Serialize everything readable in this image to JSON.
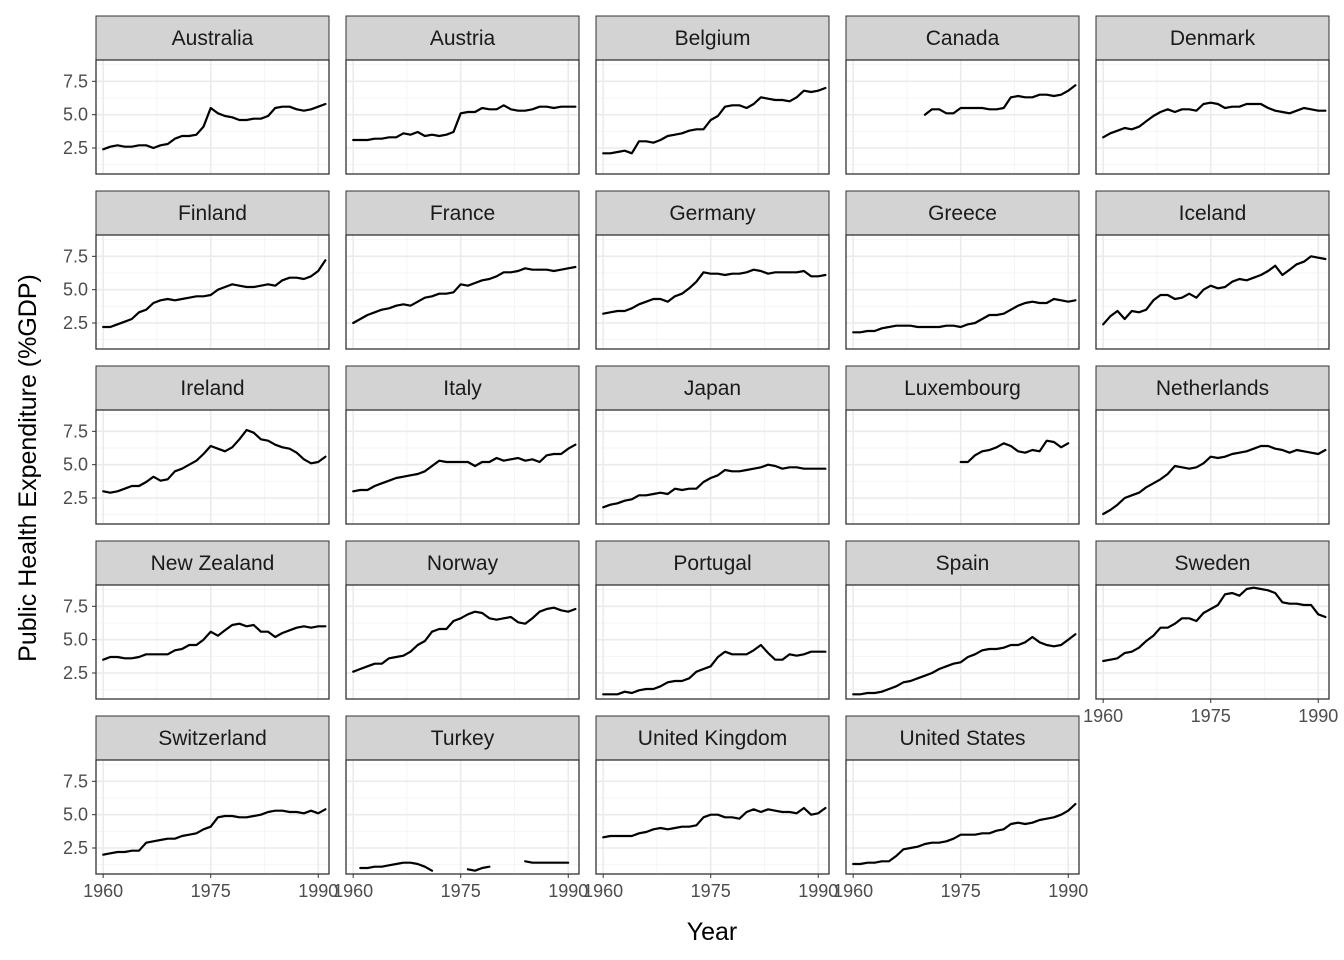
{
  "chart_data": {
    "type": "line",
    "layout": "facet_wrap",
    "xlabel": "Year",
    "ylabel": "Public Health Expenditure (%GDP)",
    "xlim": [
      1959,
      1991.5
    ],
    "ylim": [
      0.55,
      9.1
    ],
    "x_ticks": [
      1960,
      1975,
      1990
    ],
    "x_tick_labels": [
      "1960",
      "1975",
      "1990"
    ],
    "y_ticks": [
      2.5,
      5.0,
      7.5
    ],
    "y_tick_labels": [
      "2.5",
      "5.0",
      "7.5"
    ],
    "x": [
      1960,
      1961,
      1962,
      1963,
      1964,
      1965,
      1966,
      1967,
      1968,
      1969,
      1970,
      1971,
      1972,
      1973,
      1974,
      1975,
      1976,
      1977,
      1978,
      1979,
      1980,
      1981,
      1982,
      1983,
      1984,
      1985,
      1986,
      1987,
      1988,
      1989,
      1990,
      1991
    ],
    "series": [
      {
        "name": "Australia",
        "values": [
          2.4,
          2.6,
          2.7,
          2.6,
          2.6,
          2.7,
          2.7,
          2.5,
          2.7,
          2.8,
          3.2,
          3.4,
          3.4,
          3.5,
          4.1,
          5.5,
          5.1,
          4.9,
          4.8,
          4.6,
          4.6,
          4.7,
          4.7,
          4.9,
          5.5,
          5.6,
          5.6,
          5.4,
          5.3,
          5.4,
          5.6,
          5.8
        ]
      },
      {
        "name": "Austria",
        "values": [
          3.1,
          3.1,
          3.1,
          3.2,
          3.2,
          3.3,
          3.3,
          3.6,
          3.5,
          3.7,
          3.4,
          3.5,
          3.4,
          3.5,
          3.7,
          5.1,
          5.2,
          5.2,
          5.5,
          5.4,
          5.4,
          5.7,
          5.4,
          5.3,
          5.3,
          5.4,
          5.6,
          5.6,
          5.5,
          5.6,
          5.6,
          5.6
        ]
      },
      {
        "name": "Belgium",
        "values": [
          2.1,
          2.1,
          2.2,
          2.3,
          2.1,
          3.0,
          3.0,
          2.9,
          3.1,
          3.4,
          3.5,
          3.6,
          3.8,
          3.9,
          3.9,
          4.6,
          4.9,
          5.6,
          5.7,
          5.7,
          5.5,
          5.8,
          6.3,
          6.2,
          6.1,
          6.1,
          6.0,
          6.3,
          6.8,
          6.7,
          6.8,
          7.0
        ]
      },
      {
        "name": "Canada",
        "values": [
          null,
          null,
          null,
          null,
          null,
          null,
          null,
          null,
          null,
          null,
          5.0,
          5.4,
          5.4,
          5.1,
          5.1,
          5.5,
          5.5,
          5.5,
          5.5,
          5.4,
          5.4,
          5.5,
          6.3,
          6.4,
          6.3,
          6.3,
          6.5,
          6.5,
          6.4,
          6.5,
          6.8,
          7.2
        ]
      },
      {
        "name": "Denmark",
        "values": [
          3.3,
          3.6,
          3.8,
          4.0,
          3.9,
          4.1,
          4.5,
          4.9,
          5.2,
          5.4,
          5.2,
          5.4,
          5.4,
          5.3,
          5.8,
          5.9,
          5.8,
          5.5,
          5.6,
          5.6,
          5.8,
          5.8,
          5.8,
          5.5,
          5.3,
          5.2,
          5.1,
          5.3,
          5.5,
          5.4,
          5.3,
          5.3
        ]
      },
      {
        "name": "Finland",
        "values": [
          2.2,
          2.2,
          2.4,
          2.6,
          2.8,
          3.3,
          3.5,
          4.0,
          4.2,
          4.3,
          4.2,
          4.3,
          4.4,
          4.5,
          4.5,
          4.6,
          5.0,
          5.2,
          5.4,
          5.3,
          5.2,
          5.2,
          5.3,
          5.4,
          5.3,
          5.7,
          5.9,
          5.9,
          5.8,
          6.0,
          6.4,
          7.2
        ]
      },
      {
        "name": "France",
        "values": [
          2.5,
          2.8,
          3.1,
          3.3,
          3.5,
          3.6,
          3.8,
          3.9,
          3.8,
          4.1,
          4.4,
          4.5,
          4.7,
          4.7,
          4.8,
          5.4,
          5.3,
          5.5,
          5.7,
          5.8,
          6.0,
          6.3,
          6.3,
          6.4,
          6.6,
          6.5,
          6.5,
          6.5,
          6.4,
          6.5,
          6.6,
          6.7
        ]
      },
      {
        "name": "Germany",
        "values": [
          3.2,
          3.3,
          3.4,
          3.4,
          3.6,
          3.9,
          4.1,
          4.3,
          4.3,
          4.1,
          4.5,
          4.7,
          5.1,
          5.6,
          6.3,
          6.2,
          6.2,
          6.1,
          6.2,
          6.2,
          6.3,
          6.5,
          6.4,
          6.2,
          6.3,
          6.3,
          6.3,
          6.3,
          6.4,
          6.0,
          6.0,
          6.1
        ]
      },
      {
        "name": "Greece",
        "values": [
          1.8,
          1.8,
          1.9,
          1.9,
          2.1,
          2.2,
          2.3,
          2.3,
          2.3,
          2.2,
          2.2,
          2.2,
          2.2,
          2.3,
          2.3,
          2.2,
          2.4,
          2.5,
          2.8,
          3.1,
          3.1,
          3.2,
          3.5,
          3.8,
          4.0,
          4.1,
          4.0,
          4.0,
          4.3,
          4.2,
          4.1,
          4.2
        ]
      },
      {
        "name": "Iceland",
        "values": [
          2.4,
          3.0,
          3.4,
          2.8,
          3.4,
          3.3,
          3.5,
          4.2,
          4.6,
          4.6,
          4.3,
          4.4,
          4.7,
          4.4,
          5.0,
          5.3,
          5.1,
          5.2,
          5.6,
          5.8,
          5.7,
          5.9,
          6.1,
          6.4,
          6.8,
          6.1,
          6.5,
          6.9,
          7.1,
          7.5,
          7.4,
          7.3
        ]
      },
      {
        "name": "Ireland",
        "values": [
          3.0,
          2.9,
          3.0,
          3.2,
          3.4,
          3.4,
          3.7,
          4.1,
          3.8,
          3.9,
          4.5,
          4.7,
          5.0,
          5.3,
          5.8,
          6.4,
          6.2,
          6.0,
          6.3,
          6.9,
          7.6,
          7.4,
          6.9,
          6.8,
          6.5,
          6.3,
          6.2,
          5.9,
          5.4,
          5.1,
          5.2,
          5.6
        ]
      },
      {
        "name": "Italy",
        "values": [
          3.0,
          3.1,
          3.1,
          3.4,
          3.6,
          3.8,
          4.0,
          4.1,
          4.2,
          4.3,
          4.5,
          4.9,
          5.3,
          5.2,
          5.2,
          5.2,
          5.2,
          4.9,
          5.2,
          5.2,
          5.5,
          5.3,
          5.4,
          5.5,
          5.3,
          5.4,
          5.2,
          5.7,
          5.8,
          5.8,
          6.2,
          6.5
        ]
      },
      {
        "name": "Japan",
        "values": [
          1.8,
          2.0,
          2.1,
          2.3,
          2.4,
          2.7,
          2.7,
          2.8,
          2.9,
          2.8,
          3.2,
          3.1,
          3.2,
          3.2,
          3.7,
          4.0,
          4.2,
          4.6,
          4.5,
          4.5,
          4.6,
          4.7,
          4.8,
          5.0,
          4.9,
          4.7,
          4.8,
          4.8,
          4.7,
          4.7,
          4.7,
          4.7
        ]
      },
      {
        "name": "Luxembourg",
        "values": [
          null,
          null,
          null,
          null,
          null,
          null,
          null,
          null,
          null,
          null,
          null,
          null,
          null,
          null,
          null,
          5.2,
          5.2,
          5.7,
          6.0,
          6.1,
          6.3,
          6.6,
          6.4,
          6.0,
          5.9,
          6.1,
          6.0,
          6.8,
          6.7,
          6.3,
          6.6,
          null
        ]
      },
      {
        "name": "Netherlands",
        "values": [
          1.3,
          1.6,
          2.0,
          2.5,
          2.7,
          2.9,
          3.3,
          3.6,
          3.9,
          4.3,
          4.9,
          4.8,
          4.7,
          4.8,
          5.1,
          5.6,
          5.5,
          5.6,
          5.8,
          5.9,
          6.0,
          6.2,
          6.4,
          6.4,
          6.2,
          6.1,
          5.9,
          6.1,
          6.0,
          5.9,
          5.8,
          6.1
        ]
      },
      {
        "name": "New Zealand",
        "values": [
          3.5,
          3.7,
          3.7,
          3.6,
          3.6,
          3.7,
          3.9,
          3.9,
          3.9,
          3.9,
          4.2,
          4.3,
          4.6,
          4.6,
          5.0,
          5.6,
          5.3,
          5.7,
          6.1,
          6.2,
          6.0,
          6.1,
          5.6,
          5.6,
          5.2,
          5.5,
          5.7,
          5.9,
          6.0,
          5.9,
          6.0,
          6.0
        ]
      },
      {
        "name": "Norway",
        "values": [
          2.6,
          2.8,
          3.0,
          3.2,
          3.2,
          3.6,
          3.7,
          3.8,
          4.1,
          4.6,
          4.9,
          5.6,
          5.8,
          5.8,
          6.4,
          6.6,
          6.9,
          7.1,
          7.0,
          6.6,
          6.5,
          6.6,
          6.7,
          6.3,
          6.2,
          6.6,
          7.1,
          7.3,
          7.4,
          7.2,
          7.1,
          7.3
        ]
      },
      {
        "name": "Portugal",
        "values": [
          0.9,
          0.9,
          0.9,
          1.1,
          1.0,
          1.2,
          1.3,
          1.3,
          1.5,
          1.8,
          1.9,
          1.9,
          2.1,
          2.6,
          2.8,
          3.0,
          3.7,
          4.1,
          3.9,
          3.9,
          3.9,
          4.2,
          4.6,
          4.0,
          3.5,
          3.5,
          3.9,
          3.8,
          3.9,
          4.1,
          4.1,
          4.1
        ]
      },
      {
        "name": "Spain",
        "values": [
          0.9,
          0.9,
          1.0,
          1.0,
          1.1,
          1.3,
          1.5,
          1.8,
          1.9,
          2.1,
          2.3,
          2.5,
          2.8,
          3.0,
          3.2,
          3.3,
          3.7,
          3.9,
          4.2,
          4.3,
          4.3,
          4.4,
          4.6,
          4.6,
          4.8,
          5.2,
          4.8,
          4.6,
          4.5,
          4.6,
          5.0,
          5.4
        ]
      },
      {
        "name": "Sweden",
        "values": [
          3.4,
          3.5,
          3.6,
          4.0,
          4.1,
          4.4,
          4.9,
          5.3,
          5.9,
          5.9,
          6.2,
          6.6,
          6.6,
          6.4,
          7.0,
          7.3,
          7.6,
          8.4,
          8.5,
          8.3,
          8.8,
          8.9,
          8.8,
          8.7,
          8.5,
          7.8,
          7.7,
          7.7,
          7.6,
          7.6,
          6.9,
          6.7
        ]
      },
      {
        "name": "Switzerland",
        "values": [
          2.0,
          2.1,
          2.2,
          2.2,
          2.3,
          2.3,
          2.9,
          3.0,
          3.1,
          3.2,
          3.2,
          3.4,
          3.5,
          3.6,
          3.9,
          4.1,
          4.8,
          4.9,
          4.9,
          4.8,
          4.8,
          4.9,
          5.0,
          5.2,
          5.3,
          5.3,
          5.2,
          5.2,
          5.1,
          5.3,
          5.1,
          5.4
        ]
      },
      {
        "name": "Turkey",
        "values": [
          null,
          1.0,
          1.0,
          1.1,
          1.1,
          1.2,
          1.3,
          1.4,
          1.4,
          1.3,
          1.1,
          0.8,
          null,
          null,
          null,
          null,
          0.9,
          0.8,
          1.0,
          1.1,
          null,
          null,
          null,
          null,
          1.5,
          1.4,
          1.4,
          1.4,
          1.4,
          1.4,
          1.4,
          null
        ]
      },
      {
        "name": "United Kingdom",
        "values": [
          3.3,
          3.4,
          3.4,
          3.4,
          3.4,
          3.6,
          3.7,
          3.9,
          4.0,
          3.9,
          4.0,
          4.1,
          4.1,
          4.2,
          4.8,
          5.0,
          5.0,
          4.8,
          4.8,
          4.7,
          5.2,
          5.4,
          5.2,
          5.4,
          5.3,
          5.2,
          5.2,
          5.1,
          5.5,
          5.0,
          5.1,
          5.5
        ]
      },
      {
        "name": "United States",
        "values": [
          1.3,
          1.3,
          1.4,
          1.4,
          1.5,
          1.5,
          1.9,
          2.4,
          2.5,
          2.6,
          2.8,
          2.9,
          2.9,
          3.0,
          3.2,
          3.5,
          3.5,
          3.5,
          3.6,
          3.6,
          3.8,
          3.9,
          4.3,
          4.4,
          4.3,
          4.4,
          4.6,
          4.7,
          4.8,
          5.0,
          5.3,
          5.8
        ]
      }
    ]
  }
}
